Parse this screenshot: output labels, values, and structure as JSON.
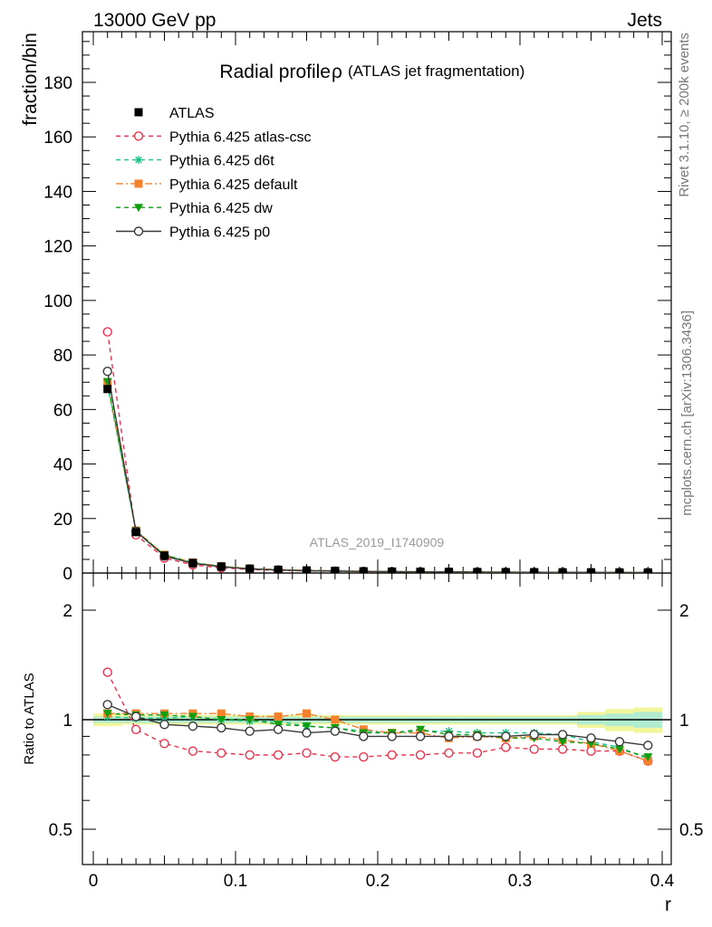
{
  "header": {
    "energy_label": "13000 GeV pp",
    "process_label": "Jets"
  },
  "side_text": {
    "rivet": "Rivet 3.1.10, ≥ 200k events",
    "mcplots": "mcplots.cern.ch [arXiv:1306.3436]"
  },
  "analysis_id": "ATLAS_2019_I1740909",
  "colors": {
    "atlas": "#000000",
    "atlas_csc": "#e8334f",
    "d6t": "#19c288",
    "default": "#f5812d",
    "dw": "#119e11",
    "p0": "#3a3a3a",
    "band_inner": "#b2ecd0",
    "band_outer": "#f2f59a"
  },
  "chart_data": [
    {
      "type": "line",
      "title": "Radial profile",
      "title_symbol": "ρ",
      "subtitle": "(ATLAS jet fragmentation)",
      "ylabel": "fraction/bin",
      "xlabel": "r",
      "xlim": [
        -0.01,
        0.4
      ],
      "ylim": [
        0,
        198
      ],
      "yticks": [
        0,
        20,
        40,
        60,
        80,
        100,
        120,
        140,
        160,
        180
      ],
      "ytick_labels": [
        "0",
        "20",
        "40",
        "60",
        "80",
        "100",
        "120",
        "140",
        "160",
        "180"
      ],
      "legend_position": "top-left",
      "x": [
        0.01,
        0.03,
        0.05,
        0.07,
        0.09,
        0.11,
        0.13,
        0.15,
        0.17,
        0.19,
        0.21,
        0.23,
        0.25,
        0.27,
        0.29,
        0.31,
        0.33,
        0.35,
        0.37,
        0.39
      ],
      "series": [
        {
          "name": "ATLAS",
          "marker": "square",
          "values": [
            67.5,
            15.0,
            6.4,
            3.7,
            2.4,
            1.6,
            1.2,
            0.95,
            0.8,
            0.65,
            0.55,
            0.48,
            0.43,
            0.38,
            0.34,
            0.31,
            0.28,
            0.26,
            0.24,
            0.22
          ]
        },
        {
          "name": "Pythia 6.425 atlas-csc",
          "marker": "open-circle",
          "line": "dashed",
          "values": [
            88.5,
            14.0,
            5.5,
            3.0,
            1.9,
            1.3,
            0.96,
            0.77,
            0.63,
            0.51,
            0.44,
            0.38,
            0.35,
            0.31,
            0.29,
            0.26,
            0.23,
            0.21,
            0.2,
            0.17
          ]
        },
        {
          "name": "Pythia 6.425 d6t",
          "marker": "star",
          "line": "dashed",
          "values": [
            69.0,
            15.2,
            6.5,
            3.8,
            2.4,
            1.6,
            1.2,
            0.92,
            0.76,
            0.6,
            0.51,
            0.45,
            0.4,
            0.35,
            0.31,
            0.29,
            0.25,
            0.23,
            0.2,
            0.17
          ]
        },
        {
          "name": "Pythia 6.425 default",
          "marker": "square",
          "line": "dashdot",
          "values": [
            70.0,
            15.6,
            6.7,
            3.9,
            2.5,
            1.63,
            1.23,
            0.99,
            0.79,
            0.61,
            0.51,
            0.44,
            0.38,
            0.34,
            0.3,
            0.28,
            0.25,
            0.22,
            0.2,
            0.17
          ]
        },
        {
          "name": "Pythia 6.425 dw",
          "marker": "triangle-down",
          "line": "dashed",
          "values": [
            70.2,
            15.5,
            6.6,
            3.8,
            2.4,
            1.6,
            1.16,
            0.91,
            0.76,
            0.59,
            0.5,
            0.45,
            0.39,
            0.35,
            0.3,
            0.27,
            0.24,
            0.22,
            0.19,
            0.17
          ]
        },
        {
          "name": "Pythia 6.425 p0",
          "marker": "open-circle",
          "line": "solid",
          "values": [
            74.0,
            15.3,
            6.2,
            3.55,
            2.3,
            1.5,
            1.13,
            0.87,
            0.74,
            0.58,
            0.49,
            0.43,
            0.39,
            0.34,
            0.3,
            0.28,
            0.25,
            0.23,
            0.21,
            0.19
          ]
        }
      ]
    },
    {
      "type": "line",
      "ylabel": "Ratio to ATLAS",
      "xlabel": "r",
      "xlim": [
        -0.01,
        0.4
      ],
      "ylim": [
        0.4,
        2.3
      ],
      "y_scale": "log",
      "yticks": [
        0.5,
        1,
        2
      ],
      "ytick_labels": [
        "0.5",
        "1",
        "2"
      ],
      "xticks": [
        0,
        0.1,
        0.2,
        0.3,
        0.4
      ],
      "xtick_labels": [
        "0",
        "0.1",
        "0.2",
        "0.3",
        "0.4"
      ],
      "x": [
        0.01,
        0.03,
        0.05,
        0.07,
        0.09,
        0.11,
        0.13,
        0.15,
        0.17,
        0.19,
        0.21,
        0.23,
        0.25,
        0.27,
        0.29,
        0.31,
        0.33,
        0.35,
        0.37,
        0.39
      ],
      "band_inner": [
        0.02,
        0.02,
        0.02,
        0.02,
        0.02,
        0.02,
        0.02,
        0.02,
        0.02,
        0.02,
        0.02,
        0.02,
        0.02,
        0.02,
        0.02,
        0.02,
        0.02,
        0.03,
        0.04,
        0.05
      ],
      "band_outer": [
        0.04,
        0.03,
        0.03,
        0.03,
        0.03,
        0.03,
        0.03,
        0.03,
        0.03,
        0.03,
        0.03,
        0.03,
        0.03,
        0.03,
        0.03,
        0.03,
        0.03,
        0.05,
        0.07,
        0.08
      ],
      "series": [
        {
          "name": "Pythia 6.425 atlas-csc",
          "values": [
            1.35,
            0.94,
            0.86,
            0.82,
            0.81,
            0.8,
            0.8,
            0.81,
            0.79,
            0.79,
            0.8,
            0.8,
            0.81,
            0.81,
            0.84,
            0.83,
            0.83,
            0.82,
            0.82,
            0.77
          ]
        },
        {
          "name": "Pythia 6.425 d6t",
          "values": [
            1.02,
            1.01,
            1.01,
            1.02,
            1.0,
            0.99,
            0.99,
            0.96,
            0.95,
            0.93,
            0.92,
            0.93,
            0.93,
            0.92,
            0.92,
            0.92,
            0.91,
            0.87,
            0.84,
            0.78
          ]
        },
        {
          "name": "Pythia 6.425 default",
          "values": [
            1.04,
            1.04,
            1.04,
            1.04,
            1.04,
            1.02,
            1.02,
            1.04,
            1.0,
            0.94,
            0.92,
            0.92,
            0.89,
            0.9,
            0.89,
            0.9,
            0.88,
            0.86,
            0.82,
            0.77
          ]
        },
        {
          "name": "Pythia 6.425 dw",
          "values": [
            1.04,
            1.03,
            1.03,
            1.02,
            1.0,
            1.0,
            0.97,
            0.96,
            0.95,
            0.92,
            0.92,
            0.94,
            0.91,
            0.91,
            0.89,
            0.89,
            0.87,
            0.86,
            0.83,
            0.79
          ]
        },
        {
          "name": "Pythia 6.425 p0",
          "values": [
            1.1,
            1.02,
            0.97,
            0.96,
            0.95,
            0.93,
            0.94,
            0.92,
            0.93,
            0.9,
            0.9,
            0.9,
            0.9,
            0.9,
            0.9,
            0.91,
            0.91,
            0.89,
            0.87,
            0.85
          ]
        }
      ]
    }
  ]
}
